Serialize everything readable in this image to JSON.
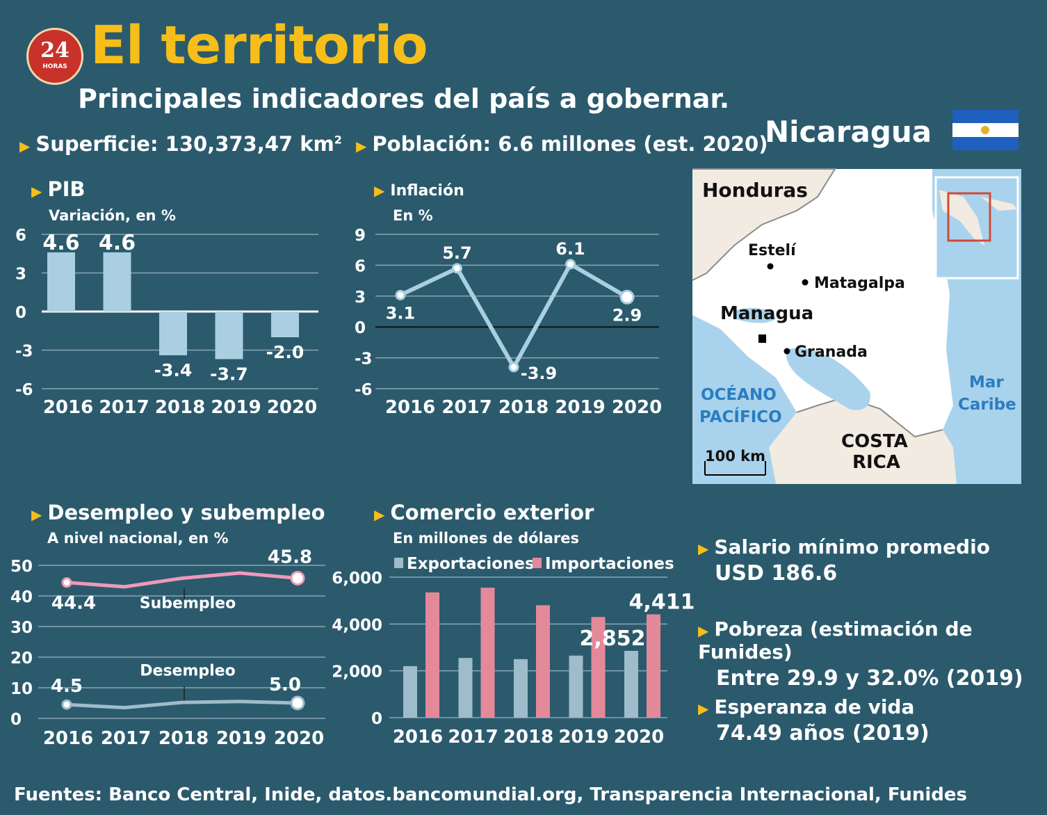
{
  "logo": {
    "text": "24",
    "subtext": "HORAS"
  },
  "title": "El territorio",
  "subtitle": "Principales indicadores del país a gobernar.",
  "surface": {
    "label": "Superficie: 130,373,47 km",
    "sup": "2"
  },
  "population": {
    "label": "Población: 6.6 millones (est. 2020)"
  },
  "country": "Nicaragua",
  "colors": {
    "background": "#2b5a6d",
    "accent": "#f6be1a",
    "bar_light": "#a9cfe0",
    "line": "#a9cfe0",
    "pink": "#ee9ab8",
    "export_bar": "#9fbccb",
    "import_bar": "#e4899a"
  },
  "map": {
    "labels": {
      "honduras": "Honduras",
      "esteli": "Estelí",
      "matagalpa": "Matagalpa",
      "managua": "Managua",
      "granada": "Granada",
      "ocean1": "OCÉANO",
      "ocean2": "PACÍFICO",
      "sea1": "Mar",
      "sea2": "Caribe",
      "costa1": "COSTA",
      "costa2": "RICA",
      "scale": "100 km"
    }
  },
  "info": {
    "salary_label": "Salario mínimo promedio",
    "salary_value": "USD 186.6",
    "poverty_label": "Pobreza (estimación de Funides)",
    "poverty_value": "Entre 29.9 y 32.0% (2019)",
    "life_label": "Esperanza de vida",
    "life_value": "74.49 años (2019)"
  },
  "sources": "Fuentes: Banco Central, Inide, datos.bancomundial.org, Transparencia Internacional, Funides",
  "chart_data": [
    {
      "type": "bar",
      "title": "PIB",
      "subtitle": "Variación, en %",
      "categories": [
        "2016",
        "2017",
        "2018",
        "2019",
        "2020"
      ],
      "values": [
        4.6,
        4.6,
        -3.4,
        -3.7,
        -2.0
      ],
      "labels": [
        "4.6",
        "4.6",
        "-3.4",
        "-3.7",
        "-2.0"
      ],
      "ylim": [
        -6,
        6
      ],
      "yticks": [
        "6",
        "3",
        "0",
        "-3",
        "-6"
      ],
      "grid": true
    },
    {
      "type": "line",
      "title": "Inflación",
      "subtitle": "En %",
      "categories": [
        "2016",
        "2017",
        "2018",
        "2019",
        "2020"
      ],
      "values": [
        3.1,
        5.7,
        -3.9,
        6.1,
        2.9
      ],
      "labels": [
        "3.1",
        "5.7",
        "-3.9",
        "6.1",
        "2.9"
      ],
      "ylim": [
        -6,
        9
      ],
      "yticks": [
        "9",
        "6",
        "3",
        "0",
        "-3",
        "-6"
      ],
      "grid": true
    },
    {
      "type": "line",
      "title": "Desempleo y subempleo",
      "subtitle": "A nivel nacional, en %",
      "categories": [
        "2016",
        "2017",
        "2018",
        "2019",
        "2020"
      ],
      "ylim": [
        0,
        50
      ],
      "yticks": [
        "50",
        "40",
        "30",
        "20",
        "10",
        "0"
      ],
      "series": [
        {
          "name": "Subempleo",
          "values": [
            44.4,
            43.0,
            45.8,
            47.5,
            45.8
          ],
          "end_labels": [
            "44.4",
            "45.8"
          ]
        },
        {
          "name": "Desempleo",
          "values": [
            4.5,
            3.5,
            5.2,
            5.5,
            5.0
          ],
          "end_labels": [
            "4.5",
            "5.0"
          ]
        }
      ],
      "grid": true
    },
    {
      "type": "bar",
      "title": "Comercio exterior",
      "subtitle": "En millones de dólares",
      "categories": [
        "2016",
        "2017",
        "2018",
        "2019",
        "2020"
      ],
      "ylim": [
        0,
        6000
      ],
      "yticks": [
        "6,000",
        "4,000",
        "2,000",
        "0"
      ],
      "series": [
        {
          "name": "Exportaciones",
          "values": [
            2200,
            2550,
            2500,
            2650,
            2852
          ]
        },
        {
          "name": "Importaciones",
          "values": [
            5350,
            5550,
            4800,
            4300,
            4411
          ]
        }
      ],
      "value_labels": [
        "2,852",
        "4,411"
      ],
      "legend": "top",
      "grid": true
    }
  ]
}
